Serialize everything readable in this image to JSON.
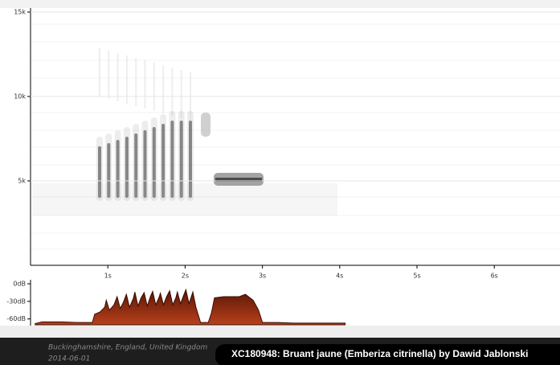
{
  "chart_data": [
    {
      "type": "spectrogram",
      "xlim": [
        0,
        6.85
      ],
      "ylim": [
        0,
        15000
      ],
      "xticks": [
        {
          "value": 1,
          "label": "1s"
        },
        {
          "value": 2,
          "label": "2s"
        },
        {
          "value": 3,
          "label": "3s"
        },
        {
          "value": 4,
          "label": "4s"
        },
        {
          "value": 5,
          "label": "5s"
        },
        {
          "value": 6,
          "label": "6s"
        }
      ],
      "yticks": [
        {
          "value": 5000,
          "label": "5k"
        },
        {
          "value": 10000,
          "label": "10k"
        },
        {
          "value": 15000,
          "label": "15k"
        }
      ],
      "grid": true
    },
    {
      "type": "area",
      "color": "#8b2a10",
      "xlim": [
        0,
        6.85
      ],
      "ylim": [
        -70,
        0
      ],
      "yticks": [
        {
          "value": 0,
          "label": "0dB"
        },
        {
          "value": -30,
          "label": "-30dB"
        },
        {
          "value": -60,
          "label": "-60dB"
        }
      ],
      "x": [
        0.06,
        0.15,
        0.4,
        0.6,
        0.8,
        0.83,
        0.9,
        0.96,
        0.98,
        1.02,
        1.08,
        1.12,
        1.16,
        1.2,
        1.24,
        1.28,
        1.33,
        1.35,
        1.39,
        1.43,
        1.47,
        1.51,
        1.55,
        1.58,
        1.62,
        1.66,
        1.68,
        1.72,
        1.76,
        1.8,
        1.84,
        1.88,
        1.9,
        1.94,
        1.98,
        2.01,
        2.05,
        2.08,
        2.1,
        2.14,
        2.2,
        2.3,
        2.34,
        2.38,
        2.5,
        2.7,
        2.78,
        2.88,
        2.95,
        3.0,
        3.2,
        3.4,
        3.6,
        3.9,
        4.07
      ],
      "values": [
        -68,
        -65,
        -65,
        -66,
        -66,
        -52,
        -48,
        -40,
        -28,
        -45,
        -36,
        -22,
        -42,
        -32,
        -18,
        -40,
        -25,
        -14,
        -38,
        -24,
        -15,
        -38,
        -22,
        -13,
        -36,
        -24,
        -16,
        -36,
        -22,
        -12,
        -36,
        -24,
        -14,
        -34,
        -20,
        -10,
        -34,
        -22,
        -14,
        -40,
        -66,
        -66,
        -50,
        -24,
        -22,
        -22,
        -18,
        -28,
        -45,
        -66,
        -66,
        -67,
        -67,
        -67,
        -67
      ]
    }
  ],
  "recording": {
    "location": "Buckinghamshire, England, United Kingdom",
    "date": "2014-06-01",
    "title": "XC180948: Bruant jaune (Emberiza citrinella) by Dawid Jablonski"
  }
}
